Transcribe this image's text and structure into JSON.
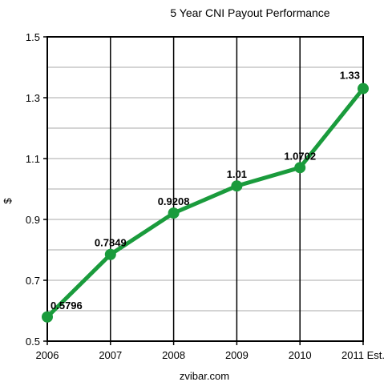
{
  "chart_data": {
    "type": "line",
    "title": "5 Year CNI Payout Performance",
    "xlabel": "zvibar.com",
    "ylabel": "$",
    "categories": [
      "2006",
      "2007",
      "2008",
      "2009",
      "2010",
      "2011 Est."
    ],
    "series": [
      {
        "values": [
          0.5796,
          0.7849,
          0.9208,
          1.01,
          1.0702,
          1.33
        ],
        "data_labels": [
          "0.5796",
          "0.7849",
          "0.9208",
          "1.01",
          "1.0702",
          "1.33"
        ]
      }
    ],
    "ylim": [
      0.5,
      1.5
    ],
    "yticks": [
      0.5,
      0.7,
      0.9,
      1.1,
      1.3,
      1.5
    ],
    "ytick_labels": [
      "0.5",
      "0.7",
      "0.9",
      "1.1",
      "1.3",
      "1.5"
    ],
    "ygrid_minor": [
      0.6,
      0.8,
      1.0,
      1.2,
      1.4
    ],
    "grid": true,
    "line_color": "#1a9b3c"
  }
}
